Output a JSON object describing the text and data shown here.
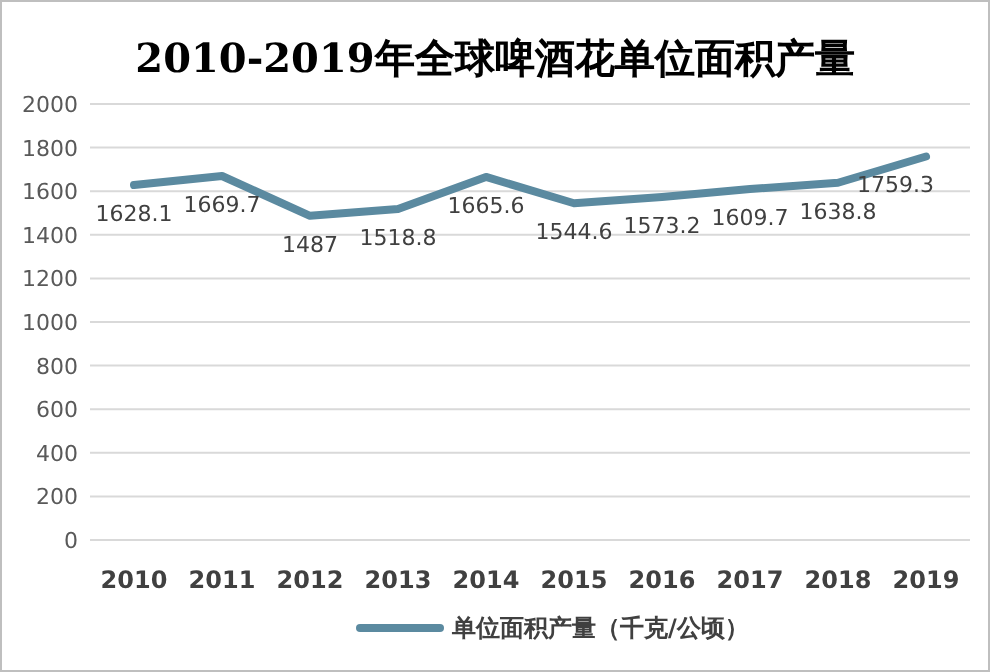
{
  "chart_data": {
    "type": "line",
    "title": "2010-2019年全球啤酒花单位面积产量",
    "categories": [
      "2010",
      "2011",
      "2012",
      "2013",
      "2014",
      "2015",
      "2016",
      "2017",
      "2018",
      "2019"
    ],
    "series": [
      {
        "name": "单位面积产量（千克/公顷）",
        "color": "#5b8aa0",
        "values": [
          1628.1,
          1669.7,
          1487,
          1518.8,
          1665.6,
          1544.6,
          1573.2,
          1609.7,
          1638.8,
          1759.3
        ]
      }
    ],
    "ylim": [
      0,
      2000
    ],
    "yticks": [
      0,
      200,
      400,
      600,
      800,
      1000,
      1200,
      1400,
      1600,
      1800,
      2000
    ],
    "grid": "y",
    "legend": "bottom",
    "data_labels": true
  }
}
